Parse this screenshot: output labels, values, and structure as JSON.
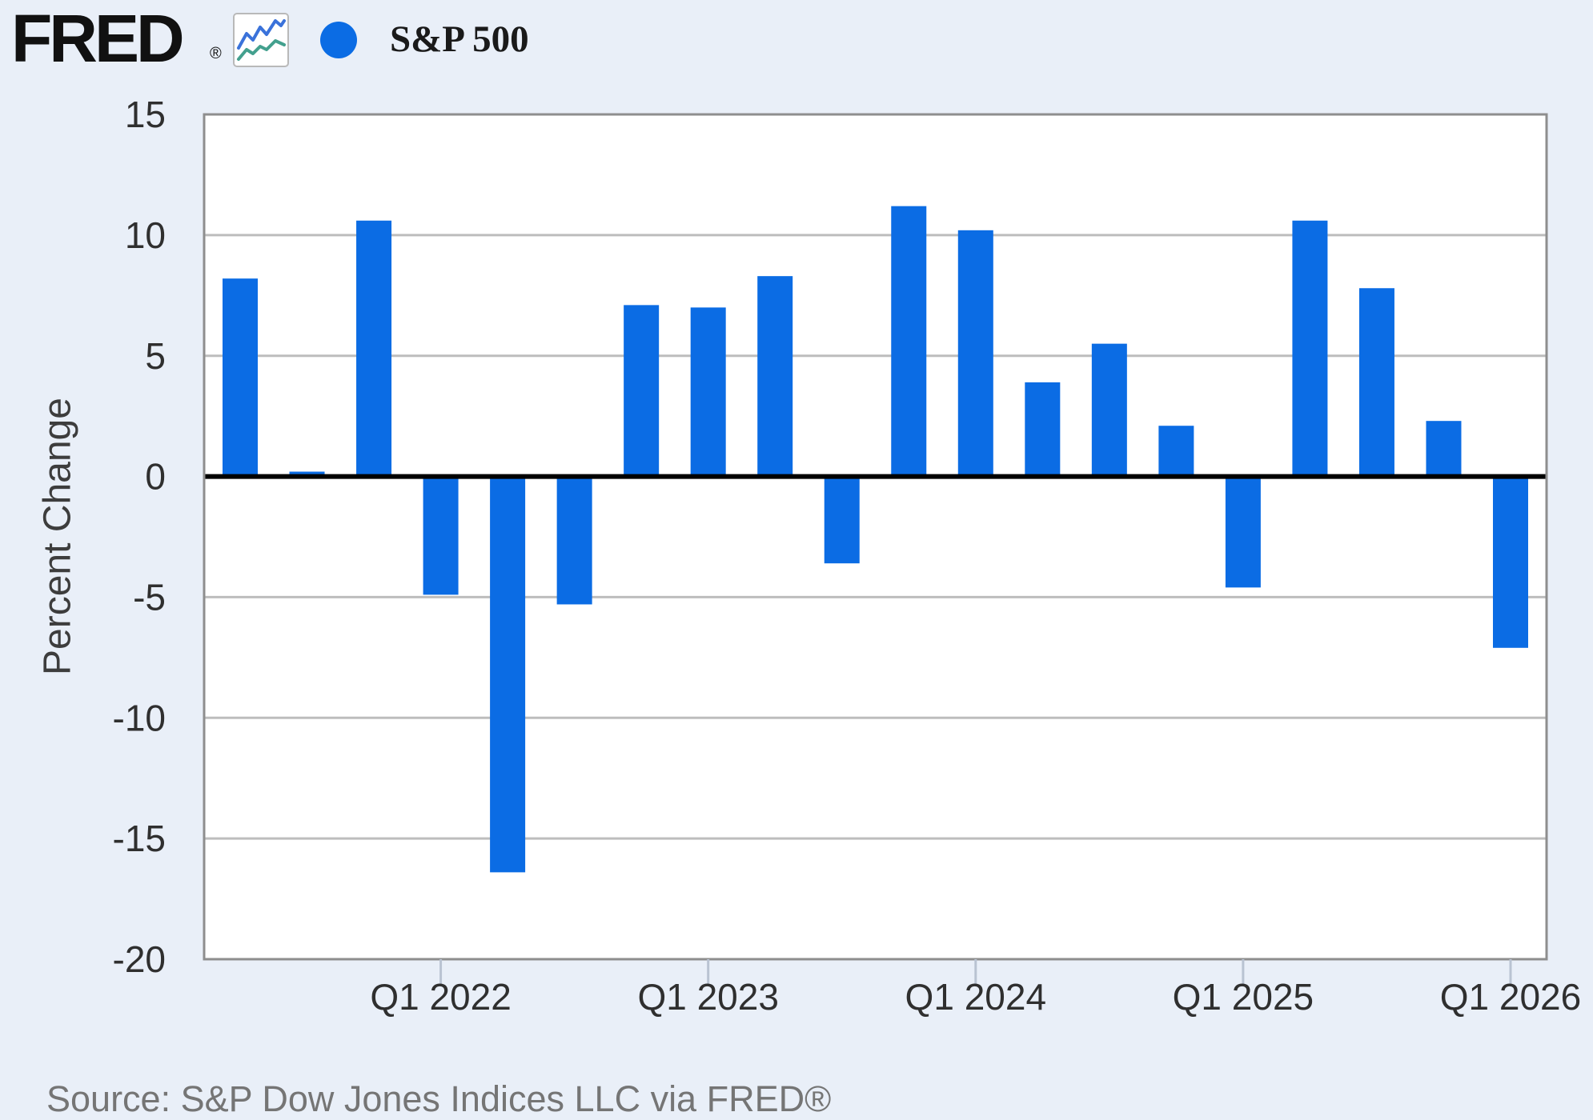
{
  "header": {
    "logo_text": "FRED",
    "logo_registered": "®",
    "legend_label": "S&P 500",
    "legend_marker_color": "#0b6ce4",
    "logo_icon_blue": "#3a72da",
    "logo_icon_teal": "#43a08e"
  },
  "chart_data": {
    "type": "bar",
    "title": "",
    "series_name": "S&P 500",
    "xlabel": "",
    "ylabel": "Percent Change",
    "bar_color": "#0b6ce4",
    "ylim": [
      -20,
      15
    ],
    "ytick_step": 5,
    "yticks": [
      15,
      10,
      5,
      0,
      -5,
      -10,
      -15,
      -20
    ],
    "grid": "horizontal",
    "zero_line": true,
    "legend_position": "top-left",
    "x": [
      "Q2 2021",
      "Q3 2021",
      "Q4 2021",
      "Q1 2022",
      "Q2 2022",
      "Q3 2022",
      "Q4 2022",
      "Q1 2023",
      "Q2 2023",
      "Q3 2023",
      "Q4 2023",
      "Q1 2024",
      "Q2 2024",
      "Q3 2024",
      "Q4 2024",
      "Q1 2025",
      "Q2 2025",
      "Q3 2025",
      "Q4 2025",
      "Q1 2026"
    ],
    "values": [
      8.2,
      0.2,
      10.6,
      -4.9,
      -16.4,
      -5.3,
      7.1,
      7.0,
      8.3,
      -3.6,
      11.2,
      10.2,
      3.9,
      5.5,
      2.1,
      -4.6,
      10.6,
      7.8,
      2.3,
      -7.1
    ],
    "xticks": [
      {
        "label": "Q1 2022",
        "index": 3
      },
      {
        "label": "Q1 2023",
        "index": 7
      },
      {
        "label": "Q1 2024",
        "index": 11
      },
      {
        "label": "Q1 2025",
        "index": 15
      },
      {
        "label": "Q1 2026",
        "index": 19
      }
    ]
  },
  "footer": {
    "source": "Source: S&P Dow Jones Indices LLC via FRED®"
  }
}
